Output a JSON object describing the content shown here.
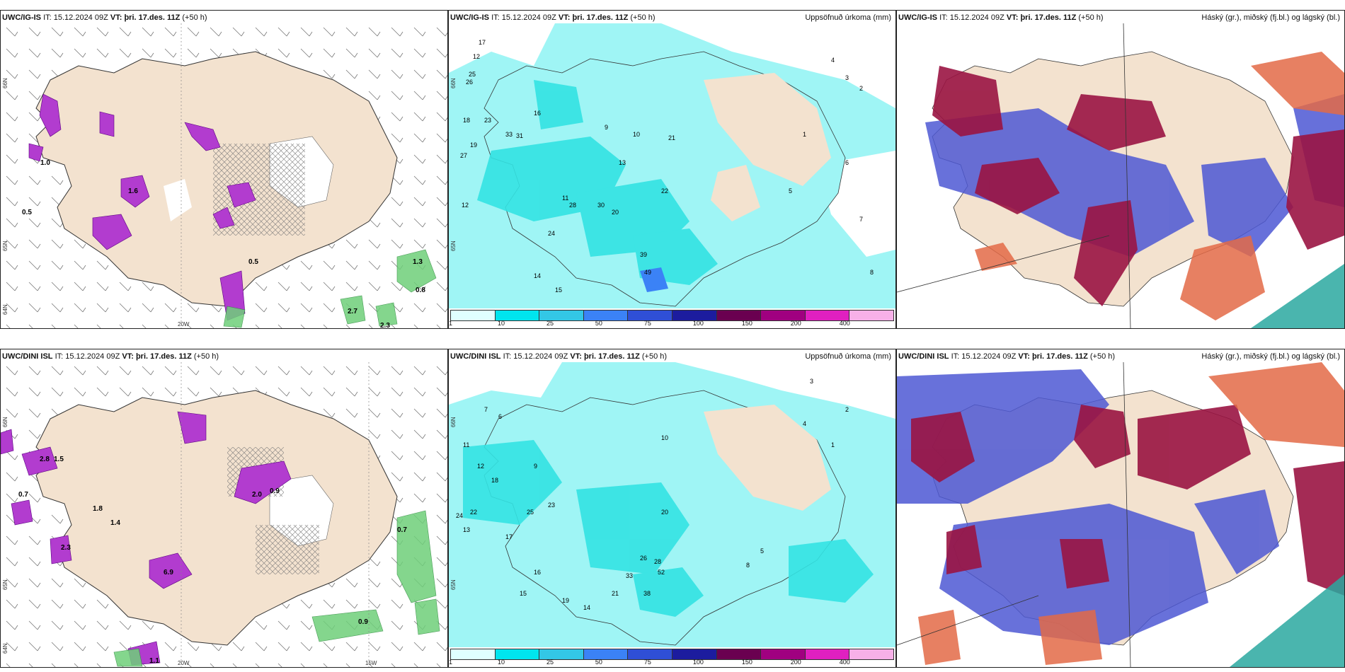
{
  "panels": [
    {
      "model": "UWC/IG-IS",
      "it_label": "IT:",
      "it_value": "15.12.2024 09Z",
      "vt_label": "VT:",
      "vt_value": "þri. 17.des. 11Z",
      "lead": "(+50 h)",
      "right_title": "",
      "type": "wind-wetbulb",
      "axis": {
        "lon": [
          "20W"
        ],
        "lat": [
          "66N",
          "65N",
          "64N"
        ]
      },
      "values": [
        "1.0",
        "0.5",
        "0.8",
        "1.3",
        "2.7",
        "2.3",
        "0.5",
        "1.6"
      ]
    },
    {
      "model": "UWC/IG-IS",
      "it_label": "IT:",
      "it_value": "15.12.2024 09Z",
      "vt_label": "VT:",
      "vt_value": "þri. 17.des. 11Z",
      "lead": "(+50 h)",
      "right_title": "Uppsöfnuð úrkoma (mm)",
      "type": "precip",
      "axis": {
        "lon": [],
        "lat": [
          "66N",
          "65N"
        ]
      },
      "values": [
        "17",
        "12",
        "25",
        "26",
        "18",
        "23",
        "27",
        "19",
        "33",
        "31",
        "16",
        "9",
        "10",
        "22",
        "30",
        "24",
        "39",
        "49",
        "12",
        "13",
        "20",
        "21",
        "14",
        "15",
        "28",
        "3",
        "2",
        "4",
        "7",
        "8",
        "5",
        "6",
        "1",
        "11"
      ]
    },
    {
      "model": "UWC/IG-IS",
      "it_label": "IT:",
      "it_value": "15.12.2024 09Z",
      "vt_label": "VT:",
      "vt_value": "þri. 17.des. 11Z",
      "lead": "(+50 h)",
      "right_title": "Háský (gr.), miðský (fj.bl.) og lágský (bl.)",
      "type": "clouds",
      "axis": {
        "lon": [],
        "lat": []
      },
      "values": []
    },
    {
      "model": "UWC/DINI ISL",
      "it_label": "IT:",
      "it_value": "15.12.2024 09Z",
      "vt_label": "VT:",
      "vt_value": "þri. 17.des. 11Z",
      "lead": "(+50 h)",
      "right_title": "",
      "type": "wind-wetbulb",
      "axis": {
        "lon": [
          "20W",
          "15W"
        ],
        "lat": [
          "66N",
          "65N",
          "64N"
        ]
      },
      "values": [
        "2.8",
        "1.5",
        "0.7",
        "1.8",
        "1.4",
        "2.3",
        "2.0",
        "0.9",
        "0.7",
        "6.9",
        "1.1",
        "0.9"
      ]
    },
    {
      "model": "UWC/DINI ISL",
      "it_label": "IT:",
      "it_value": "15.12.2024 09Z",
      "vt_label": "VT:",
      "vt_value": "þri. 17.des. 11Z",
      "lead": "(+50 h)",
      "right_title": "Uppsöfnuð úrkoma (mm)",
      "type": "precip",
      "axis": {
        "lon": [],
        "lat": [
          "66N",
          "65N"
        ]
      },
      "values": [
        "7",
        "6",
        "11",
        "12",
        "18",
        "24",
        "22",
        "13",
        "25",
        "23",
        "20",
        "26",
        "14",
        "15",
        "16",
        "19",
        "33",
        "38",
        "9",
        "10",
        "8",
        "5",
        "4",
        "3",
        "2",
        "1",
        "17",
        "21",
        "28",
        "52"
      ]
    },
    {
      "model": "UWC/DINI ISL",
      "it_label": "IT:",
      "it_value": "15.12.2024 09Z",
      "vt_label": "VT:",
      "vt_value": "þri. 17.des. 11Z",
      "lead": "(+50 h)",
      "right_title": "Háský (gr.), miðský (fj.bl.) og lágský (bl.)",
      "type": "clouds",
      "axis": {
        "lon": [],
        "lat": []
      },
      "values": []
    }
  ],
  "colorbar": {
    "ticks": [
      "1",
      "10",
      "25",
      "50",
      "75",
      "100",
      "150",
      "200",
      "400"
    ],
    "colors": [
      "#e0ffff",
      "#00e5ee",
      "#33c7e6",
      "#3b82f6",
      "#2f4fd6",
      "#1c1c9e",
      "#6a0050",
      "#a00080",
      "#e020c0",
      "#f7b0e8"
    ]
  },
  "colors": {
    "land": "#f3e2cf",
    "sea": "#ffffff",
    "precip_light": "#9ff5f5",
    "precip_mid": "#33e3e3",
    "precip_dark": "#00c8d8",
    "purple": "#b23ccf",
    "green": "#6fcf7a",
    "high_cloud": "#9a1442",
    "mid_cloud": "#4d58d4",
    "low_cloud": "#e36a46",
    "teal": "#2aa8a0"
  }
}
